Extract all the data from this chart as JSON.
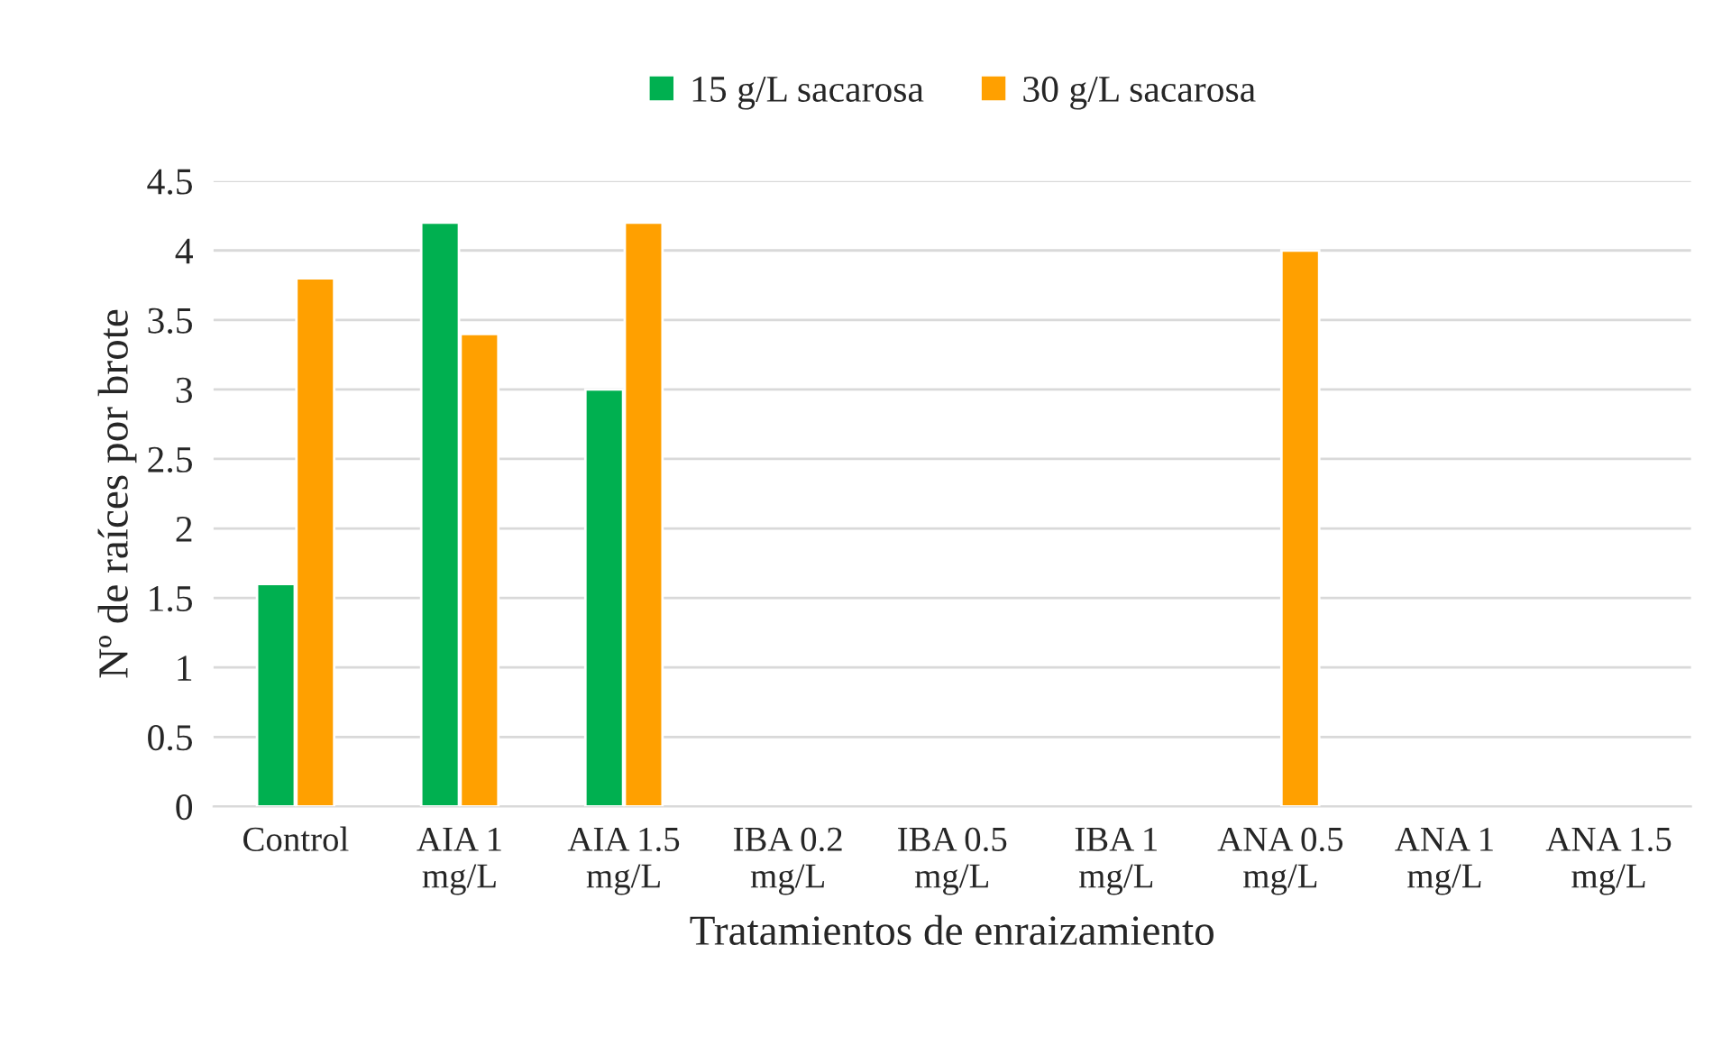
{
  "chart_data": {
    "type": "bar",
    "xlabel": "Tratamientos de enraizamiento",
    "ylabel": "Nº de raíces por brote",
    "categories": [
      "Control",
      "AIA 1\nmg/L",
      "AIA 1.5\nmg/L",
      "IBA 0.2\nmg/L",
      "IBA 0.5\nmg/L",
      "IBA 1\nmg/L",
      "ANA 0.5\nmg/L",
      "ANA 1\nmg/L",
      "ANA 1.5\nmg/L"
    ],
    "series": [
      {
        "name": "15 g/L sacarosa",
        "color": "#00b050",
        "values": [
          1.6,
          4.2,
          3.0,
          null,
          null,
          null,
          null,
          null,
          null
        ]
      },
      {
        "name": "30 g/L sacarosa",
        "color": "#ffa000",
        "values": [
          3.8,
          3.4,
          4.2,
          null,
          null,
          null,
          4.0,
          null,
          null
        ]
      }
    ],
    "ylim": [
      0,
      4.5
    ],
    "yticks": [
      0,
      0.5,
      1,
      1.5,
      2,
      2.5,
      3,
      3.5,
      4,
      4.5
    ],
    "grid": "y",
    "legend": "top"
  }
}
